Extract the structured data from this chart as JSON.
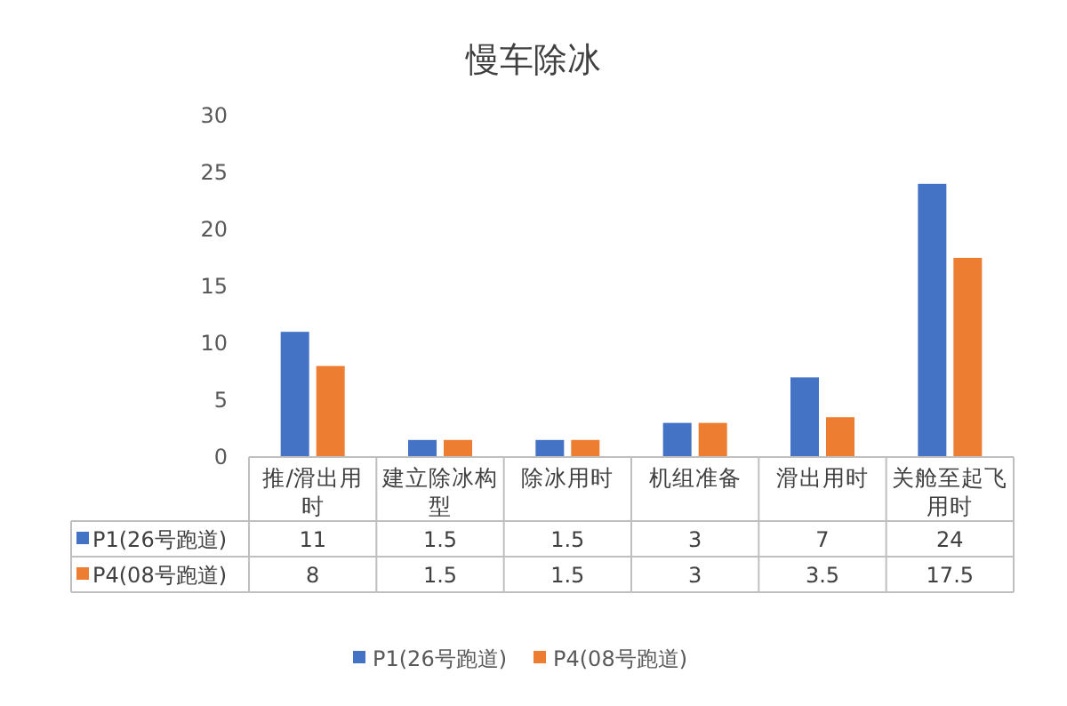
{
  "chart_data": {
    "type": "bar",
    "title": "慢车除冰",
    "categories": [
      "推/滑出用时",
      "建立除冰构型",
      "除冰用时",
      "机组准备",
      "滑出用时",
      "关舱至起飞用时"
    ],
    "series": [
      {
        "name": "P1(26号跑道)",
        "color": "#4472c4",
        "values": [
          11,
          1.5,
          1.5,
          3,
          7,
          24
        ]
      },
      {
        "name": "P4(08号跑道)",
        "color": "#ed7d31",
        "values": [
          8,
          1.5,
          1.5,
          3,
          3.5,
          17.5
        ]
      }
    ],
    "ylim": [
      0,
      30
    ],
    "yticks": [
      0,
      5,
      10,
      15,
      20,
      25,
      30
    ],
    "data_labels": true,
    "legend": "bottom"
  }
}
